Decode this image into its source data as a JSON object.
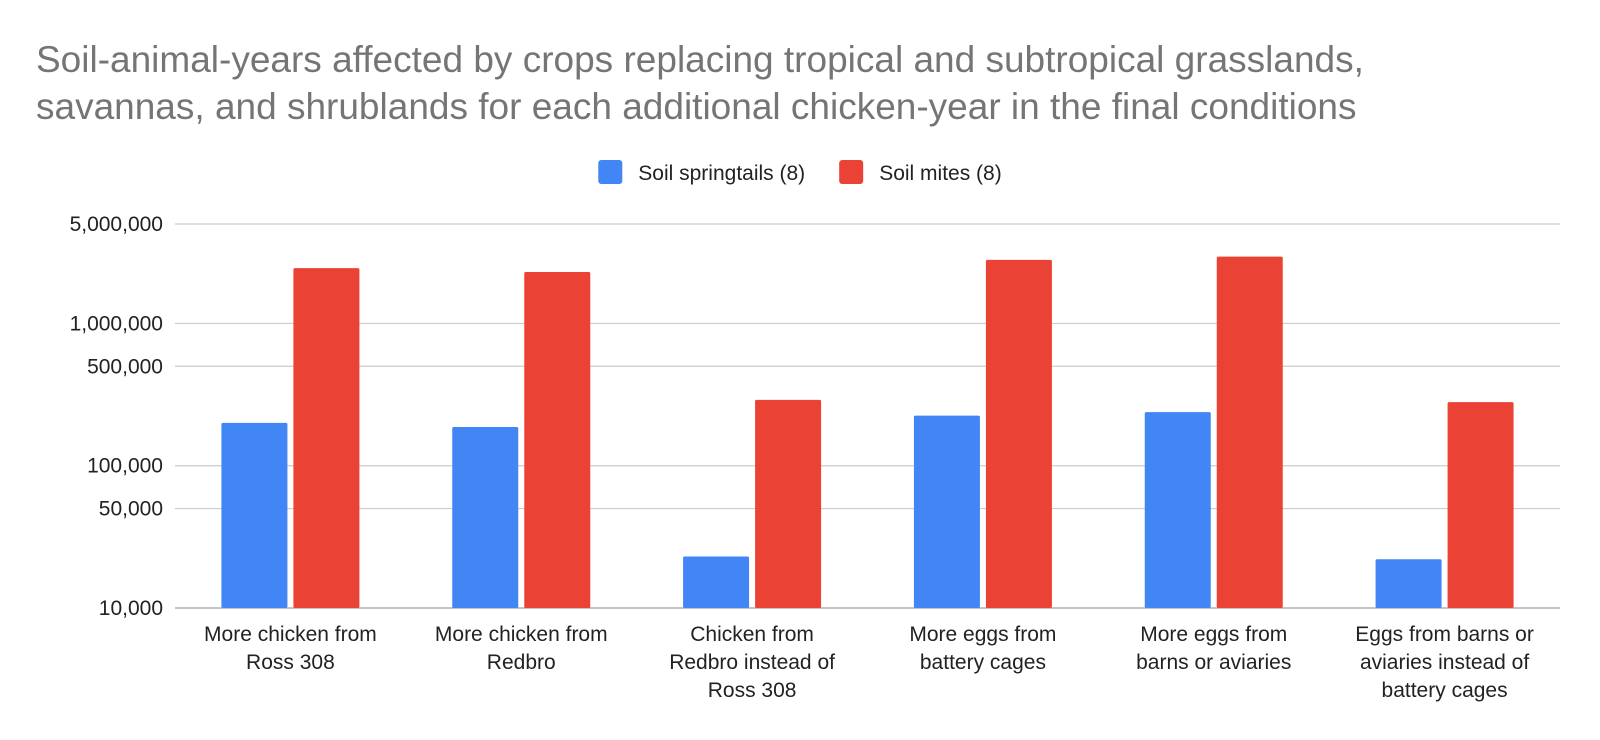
{
  "chart_data": {
    "type": "bar",
    "title_lines": [
      "Soil-animal-years affected by crops replacing tropical and subtropical grasslands,",
      "savannas, and shrublands for each additional chicken-year in the final conditions"
    ],
    "xlabel": "",
    "ylabel": "",
    "yscale": "log",
    "ylim": [
      10000,
      5000000
    ],
    "y_ticks": [
      {
        "value": 10000,
        "label": "10,000"
      },
      {
        "value": 50000,
        "label": "50,000"
      },
      {
        "value": 100000,
        "label": "100,000"
      },
      {
        "value": 500000,
        "label": "500,000"
      },
      {
        "value": 1000000,
        "label": "1,000,000"
      },
      {
        "value": 5000000,
        "label": "5,000,000"
      }
    ],
    "grid": true,
    "legend_position": "top-center",
    "categories": [
      [
        "More chicken from",
        "Ross 308"
      ],
      [
        "More chicken from",
        "Redbro"
      ],
      [
        "Chicken from",
        "Redbro instead of",
        "Ross 308"
      ],
      [
        "More eggs from",
        "battery cages"
      ],
      [
        "More eggs from",
        "barns or aviaries"
      ],
      [
        "Eggs from barns or",
        "aviaries instead of",
        "battery cages"
      ]
    ],
    "series": [
      {
        "name": "Soil springtails (8)",
        "color": "#4285f4",
        "values": [
          200000,
          187000,
          23000,
          225000,
          238000,
          22000
        ]
      },
      {
        "name": "Soil mites (8)",
        "color": "#ea4335",
        "values": [
          2450000,
          2300000,
          290000,
          2800000,
          2950000,
          280000
        ]
      }
    ]
  }
}
